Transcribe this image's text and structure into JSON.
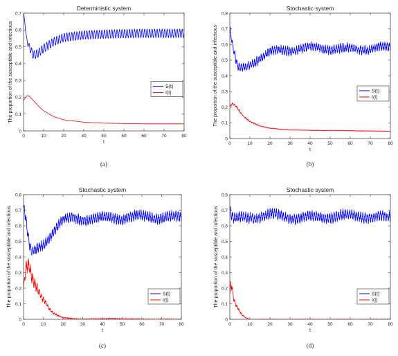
{
  "chart_data": [
    {
      "panel": "(a)",
      "type": "line",
      "title": "Deterministic system",
      "xlabel": "t",
      "ylabel": "The proportion of the susceptible and infectious",
      "xlim": [
        0,
        80
      ],
      "ylim": [
        0,
        0.7
      ],
      "xticks": [
        0,
        10,
        20,
        30,
        40,
        50,
        60,
        70,
        80
      ],
      "yticks": [
        0,
        0.1,
        0.2,
        0.3,
        0.4,
        0.5,
        0.6,
        0.7
      ],
      "ytick_labels": [
        "0",
        "0.1",
        "0.2",
        "0.3",
        "0.4",
        "0.5",
        "0.6",
        "0.7"
      ],
      "grid": false,
      "legend_position": "right-middle",
      "series": [
        {
          "name": "S(t)",
          "color": "#0000ff",
          "oscillation": "periodic",
          "amplitude": 0.025,
          "x": [
            0,
            0.5,
            1,
            1.5,
            2,
            3,
            4,
            5,
            7,
            10,
            15,
            20,
            30,
            40,
            50,
            60,
            70,
            80
          ],
          "y": [
            0.7,
            0.66,
            0.6,
            0.55,
            0.52,
            0.5,
            0.47,
            0.45,
            0.46,
            0.49,
            0.53,
            0.555,
            0.57,
            0.575,
            0.578,
            0.58,
            0.58,
            0.58
          ]
        },
        {
          "name": "I(t)",
          "color": "#ff0000",
          "oscillation": "none",
          "amplitude": 0,
          "x": [
            0,
            1,
            2,
            3,
            5,
            8,
            10,
            15,
            20,
            30,
            40,
            50,
            60,
            70,
            80
          ],
          "y": [
            0.18,
            0.2,
            0.21,
            0.205,
            0.18,
            0.14,
            0.12,
            0.085,
            0.066,
            0.052,
            0.046,
            0.044,
            0.042,
            0.042,
            0.042
          ]
        }
      ]
    },
    {
      "panel": "(b)",
      "type": "line",
      "title": "Stochastic system",
      "xlabel": "t",
      "ylabel": "The proportion of the susceptible and infectious",
      "xlim": [
        0,
        80
      ],
      "ylim": [
        0,
        0.8
      ],
      "xticks": [
        0,
        10,
        20,
        30,
        40,
        50,
        60,
        70,
        80
      ],
      "yticks": [
        0,
        0.1,
        0.2,
        0.3,
        0.4,
        0.5,
        0.6,
        0.7,
        0.8
      ],
      "ytick_labels": [
        "0",
        "0.1",
        "0.2",
        "0.3",
        "0.4",
        "0.5",
        "0.6",
        "0.7",
        "0.8"
      ],
      "grid": false,
      "legend_position": "right-middle",
      "series": [
        {
          "name": "S(t)",
          "color": "#0000ff",
          "oscillation": "noisy",
          "amplitude": 0.03,
          "x": [
            0,
            1,
            2,
            3,
            4,
            5,
            7,
            10,
            13,
            17,
            20,
            25,
            30,
            40,
            50,
            60,
            70,
            80
          ],
          "y": [
            0.7,
            0.62,
            0.55,
            0.5,
            0.45,
            0.44,
            0.45,
            0.47,
            0.5,
            0.53,
            0.55,
            0.56,
            0.565,
            0.58,
            0.575,
            0.57,
            0.575,
            0.58
          ]
        },
        {
          "name": "I(t)",
          "color": "#ff0000",
          "oscillation": "noisy",
          "amplitude": 0.006,
          "x": [
            0,
            1,
            2,
            3,
            4,
            5,
            7,
            10,
            15,
            20,
            30,
            40,
            50,
            60,
            70,
            80
          ],
          "y": [
            0.2,
            0.22,
            0.215,
            0.205,
            0.19,
            0.17,
            0.14,
            0.11,
            0.08,
            0.065,
            0.055,
            0.052,
            0.052,
            0.05,
            0.048,
            0.046
          ]
        }
      ]
    },
    {
      "panel": "(c)",
      "type": "line",
      "title": "Stochastic system",
      "xlabel": "t",
      "ylabel": "The proportion of the susceptible and infectious",
      "xlim": [
        0,
        80
      ],
      "ylim": [
        0,
        0.8
      ],
      "xticks": [
        0,
        10,
        20,
        30,
        40,
        50,
        60,
        70,
        80
      ],
      "yticks": [
        0,
        0.1,
        0.2,
        0.3,
        0.4,
        0.5,
        0.6,
        0.7,
        0.8
      ],
      "ytick_labels": [
        "0",
        "0.1",
        "0.2",
        "0.3",
        "0.4",
        "0.5",
        "0.6",
        "0.7",
        "0.8"
      ],
      "grid": false,
      "legend_position": "bottom-right",
      "series": [
        {
          "name": "S(t)",
          "color": "#0000ff",
          "oscillation": "noisy",
          "amplitude": 0.035,
          "x": [
            0,
            1,
            2,
            3,
            4,
            5,
            7,
            10,
            13,
            17,
            20,
            25,
            30,
            40,
            50,
            60,
            70,
            80
          ],
          "y": [
            0.72,
            0.66,
            0.55,
            0.47,
            0.43,
            0.43,
            0.45,
            0.48,
            0.53,
            0.6,
            0.63,
            0.645,
            0.645,
            0.65,
            0.65,
            0.66,
            0.655,
            0.65
          ]
        },
        {
          "name": "I(t)",
          "color": "#ff0000",
          "oscillation": "noisy",
          "amplitude": 0.05,
          "x": [
            0,
            1,
            2,
            3,
            4,
            5,
            7,
            9,
            11,
            13,
            15,
            18,
            20,
            25,
            30,
            40,
            45,
            50,
            80
          ],
          "y": [
            0.18,
            0.3,
            0.33,
            0.32,
            0.27,
            0.24,
            0.2,
            0.15,
            0.12,
            0.07,
            0.04,
            0.02,
            0.01,
            0.004,
            0.002,
            0.002,
            0.006,
            0.002,
            0.0
          ]
        }
      ]
    },
    {
      "panel": "(d)",
      "type": "line",
      "title": "Stochastic system",
      "xlabel": "t",
      "ylabel": "The proportion of the susceptible and infectious",
      "xlim": [
        0,
        80
      ],
      "ylim": [
        0,
        0.8
      ],
      "xticks": [
        0,
        10,
        20,
        30,
        40,
        50,
        60,
        70,
        80
      ],
      "yticks": [
        0,
        0.1,
        0.2,
        0.3,
        0.4,
        0.5,
        0.6,
        0.7,
        0.8
      ],
      "ytick_labels": [
        "0",
        "0.1",
        "0.2",
        "0.3",
        "0.4",
        "0.5",
        "0.6",
        "0.7",
        "0.8"
      ],
      "grid": false,
      "legend_position": "bottom-right",
      "series": [
        {
          "name": "S(t)",
          "color": "#0000ff",
          "oscillation": "noisy",
          "amplitude": 0.035,
          "x": [
            0,
            1,
            2,
            5,
            10,
            20,
            30,
            40,
            50,
            60,
            70,
            80
          ],
          "y": [
            0.7,
            0.66,
            0.64,
            0.645,
            0.655,
            0.67,
            0.655,
            0.65,
            0.66,
            0.665,
            0.66,
            0.65
          ]
        },
        {
          "name": "I(t)",
          "color": "#ff0000",
          "oscillation": "noisy",
          "amplitude": 0.03,
          "x": [
            0,
            0.5,
            1,
            1.5,
            2,
            3,
            4,
            5,
            6,
            7,
            8,
            10,
            80
          ],
          "y": [
            0.15,
            0.22,
            0.2,
            0.16,
            0.12,
            0.09,
            0.07,
            0.05,
            0.03,
            0.02,
            0.01,
            0.0,
            0.0
          ]
        }
      ]
    }
  ]
}
